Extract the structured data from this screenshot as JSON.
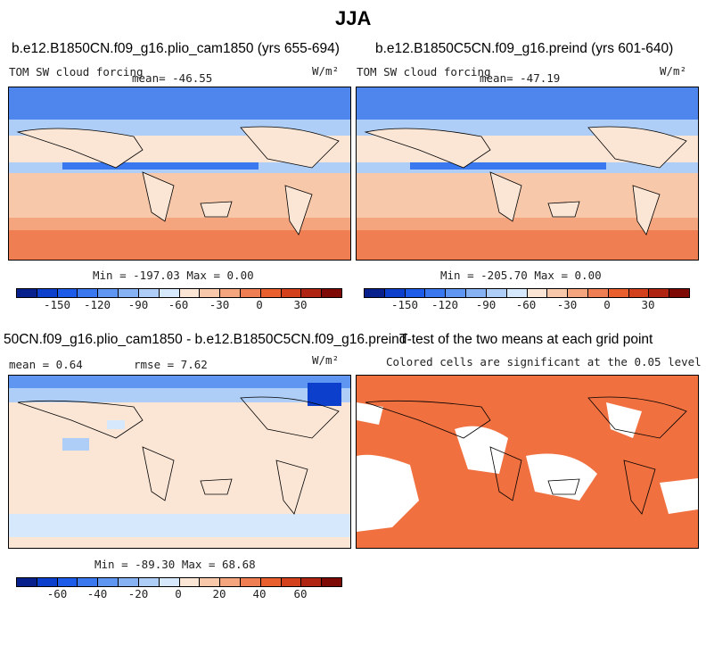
{
  "title": "JJA",
  "panels": [
    {
      "title": "b.e12.B1850CN.f09_g16.plio_cam1850 (yrs 655-694)",
      "variable": "TOM SW cloud forcing",
      "mean_text": "mean= -46.55",
      "units": "W/m²",
      "minmax": "Min = -197.03 Max =   0.00"
    },
    {
      "title": "b.e12.B1850C5CN.f09_g16.preind (yrs 601-640)",
      "variable": "TOM SW cloud forcing",
      "mean_text": "mean= -47.19",
      "units": "W/m²",
      "minmax": "Min = -205.70 Max =   0.00"
    },
    {
      "title": "50CN.f09_g16.plio_cam1850 - b.e12.B1850C5CN.f09_g16.preind",
      "mean_text": "mean =   0.64",
      "rmse_text": "rmse =   7.62",
      "units": "W/m²",
      "minmax": "Min = -89.30 Max =  68.68"
    },
    {
      "title": "T-test of the two means at each grid point",
      "subtitle": "Colored cells are significant at the 0.05 level"
    }
  ],
  "colorbars": {
    "fields": {
      "colors": [
        "#08208c",
        "#0b3fcc",
        "#1c5ce8",
        "#3a78ef",
        "#5f96f2",
        "#86b2f4",
        "#aecef7",
        "#d6e8fb",
        "#fbe6d6",
        "#f8c8aa",
        "#f4a57e",
        "#ef7e52",
        "#e95f2e",
        "#d2401c",
        "#b02412",
        "#7d0a04"
      ],
      "ticks": [
        "-150",
        "-120",
        "-90",
        "-60",
        "-30",
        "0",
        "30"
      ]
    },
    "difference": {
      "colors": [
        "#08208c",
        "#0b3fcc",
        "#1c5ce8",
        "#3a78ef",
        "#5f96f2",
        "#86b2f4",
        "#aecef7",
        "#d6e8fb",
        "#fbe6d6",
        "#f8c8aa",
        "#f4a57e",
        "#ef7e52",
        "#e95f2e",
        "#d2401c",
        "#b02412",
        "#7d0a04"
      ],
      "ticks": [
        "-60",
        "-40",
        "-20",
        "0",
        "20",
        "40",
        "60"
      ]
    }
  },
  "colors": {
    "significant": "#f07040",
    "ocean_field": "#f4a57e",
    "land_field": "#fbe6d6"
  }
}
